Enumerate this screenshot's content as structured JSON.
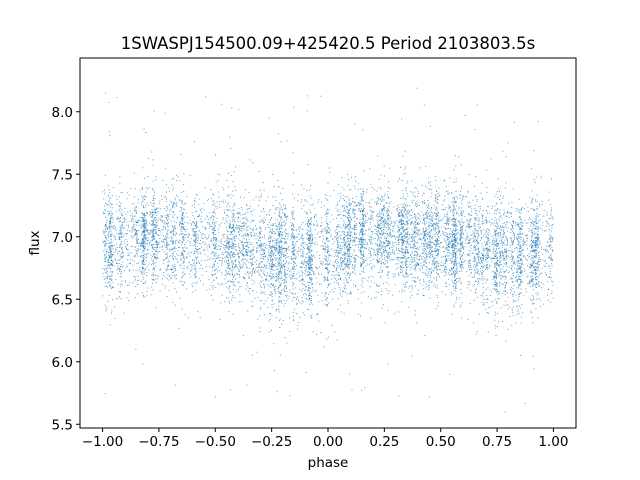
{
  "chart_data": {
    "type": "scatter",
    "title": "1SWASPJ154500.09+425420.5 Period 2103803.5s",
    "xlabel": "phase",
    "ylabel": "flux",
    "xlim": [
      -1.1,
      1.1
    ],
    "ylim": [
      5.47,
      8.43
    ],
    "xticks": [
      -1.0,
      -0.75,
      -0.5,
      -0.25,
      0.0,
      0.25,
      0.5,
      0.75,
      1.0
    ],
    "xtick_labels": [
      "−1.00",
      "−0.75",
      "−0.50",
      "−0.25",
      "0.00",
      "0.25",
      "0.50",
      "0.75",
      "1.00"
    ],
    "yticks": [
      5.5,
      6.0,
      6.5,
      7.0,
      7.5,
      8.0
    ],
    "ytick_labels": [
      "5.5",
      "6.0",
      "6.5",
      "7.0",
      "7.5",
      "8.0"
    ],
    "grid": false,
    "series": [
      {
        "name": "flux",
        "color": "#1f77b4",
        "approx_n_points": 9000,
        "phase_range": [
          -1.0,
          1.0
        ],
        "binned_profile": {
          "phase": [
            -1.0,
            -0.875,
            -0.75,
            -0.625,
            -0.5,
            -0.375,
            -0.25,
            -0.125,
            0.0,
            0.125,
            0.25,
            0.375,
            0.5,
            0.625,
            0.75,
            0.875,
            1.0
          ],
          "mean_flux": [
            6.9,
            7.0,
            7.0,
            6.98,
            6.95,
            6.92,
            6.85,
            6.85,
            6.85,
            6.98,
            7.0,
            6.98,
            6.98,
            6.95,
            6.85,
            6.85,
            6.9
          ],
          "std_flux": [
            0.22,
            0.2,
            0.2,
            0.2,
            0.22,
            0.2,
            0.22,
            0.22,
            0.24,
            0.2,
            0.2,
            0.2,
            0.22,
            0.2,
            0.22,
            0.22,
            0.22
          ]
        },
        "flux_extent": [
          5.6,
          8.3
        ]
      }
    ]
  }
}
